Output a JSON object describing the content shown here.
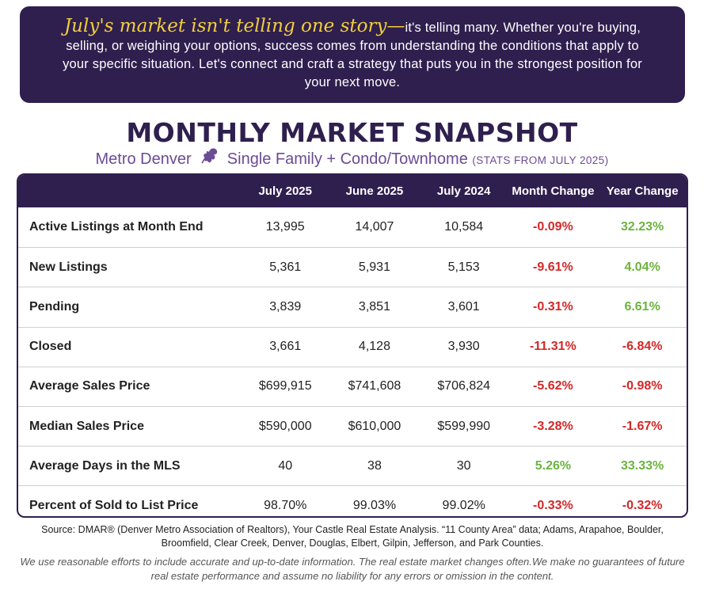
{
  "banner": {
    "lead": "July's market isn't telling one story—",
    "body": "it's telling many. Whether you're buying, selling, or weighing your options, success comes from understanding the conditions that apply to your specific situation. Let's connect and craft a strategy that puts you in the strongest position for your next move."
  },
  "title": "MONTHLY MARKET SNAPSHOT",
  "subtitle": {
    "region": "Metro Denver",
    "segment": "Single Family + Condo/Townhome",
    "stats_note": "(STATS FROM JULY 2025)",
    "leaf_icon": "columbine-leaf-icon"
  },
  "colors": {
    "dark_purple": "#2f1f4e",
    "accent_purple": "#6b4b93",
    "gold": "#f2cf3c",
    "negative": "#d22828",
    "positive": "#6cb33f"
  },
  "table": {
    "headers": [
      "",
      "July 2025",
      "June 2025",
      "July 2024",
      "Month Change",
      "Year Change"
    ],
    "rows": [
      {
        "label": "Active Listings at Month End",
        "jul25": "13,995",
        "jun25": "14,007",
        "jul24": "10,584",
        "mom": "-0.09%",
        "mom_tone": "neg",
        "yoy": "32.23%",
        "yoy_tone": "pos"
      },
      {
        "label": "New Listings",
        "jul25": "5,361",
        "jun25": "5,931",
        "jul24": "5,153",
        "mom": "-9.61%",
        "mom_tone": "neg",
        "yoy": "4.04%",
        "yoy_tone": "pos"
      },
      {
        "label": "Pending",
        "jul25": "3,839",
        "jun25": "3,851",
        "jul24": "3,601",
        "mom": "-0.31%",
        "mom_tone": "neg",
        "yoy": "6.61%",
        "yoy_tone": "pos"
      },
      {
        "label": "Closed",
        "jul25": "3,661",
        "jun25": "4,128",
        "jul24": "3,930",
        "mom": "-11.31%",
        "mom_tone": "neg",
        "yoy": "-6.84%",
        "yoy_tone": "neg"
      },
      {
        "label": "Average Sales Price",
        "jul25": "$699,915",
        "jun25": "$741,608",
        "jul24": "$706,824",
        "mom": "-5.62%",
        "mom_tone": "neg",
        "yoy": "-0.98%",
        "yoy_tone": "neg"
      },
      {
        "label": "Median Sales Price",
        "jul25": "$590,000",
        "jun25": "$610,000",
        "jul24": "$599,990",
        "mom": "-3.28%",
        "mom_tone": "neg",
        "yoy": "-1.67%",
        "yoy_tone": "neg"
      },
      {
        "label": "Average Days in the MLS",
        "jul25": "40",
        "jun25": "38",
        "jul24": "30",
        "mom": "5.26%",
        "mom_tone": "pos",
        "yoy": "33.33%",
        "yoy_tone": "pos"
      },
      {
        "label": "Percent of Sold to List Price",
        "jul25": "98.70%",
        "jun25": "99.03%",
        "jul24": "99.02%",
        "mom": "-0.33%",
        "mom_tone": "neg",
        "yoy": "-0.32%",
        "yoy_tone": "neg"
      }
    ]
  },
  "source": "Source: DMAR® (Denver Metro Association of Realtors), Your Castle Real Estate Analysis. “11 County Area” data; Adams, Arapahoe, Boulder, Broomfield, Clear Creek, Denver, Douglas, Elbert, Gilpin, Jefferson, and Park Counties.",
  "disclaimer": "We use reasonable efforts to include accurate and up-to-date information. The real estate market changes often.We make no guarantees of future real estate performance and assume no liability for any errors or omission in the content."
}
